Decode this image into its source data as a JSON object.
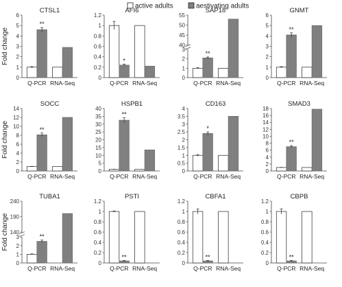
{
  "legend": {
    "active": "active adults",
    "aestivating": "aestivating adults"
  },
  "colors": {
    "active": "#ffffff",
    "aestivating": "#808080",
    "stroke": "#222222"
  },
  "ylabel": "Fold change",
  "groups": [
    "Q-PCR",
    "RNA-Seq"
  ],
  "chart_data": [
    {
      "type": "bar",
      "title": "CTSL1",
      "categories": [
        "Q-PCR",
        "RNA-Seq"
      ],
      "series": [
        {
          "name": "active adults",
          "values": [
            1,
            1
          ],
          "err": [
            0.05,
            0
          ]
        },
        {
          "name": "aestivating adults",
          "values": [
            4.6,
            2.9
          ],
          "err": [
            0.2,
            0
          ]
        }
      ],
      "ylim": [
        0,
        6
      ],
      "yticks": [
        "0",
        "1",
        "2",
        "3",
        "4",
        "5",
        "6"
      ],
      "sig": [
        "**",
        ""
      ],
      "sig_over": [
        1,
        1
      ]
    },
    {
      "type": "bar",
      "title": "AFI6",
      "categories": [
        "Q-PCR",
        "RNA-Seq"
      ],
      "series": [
        {
          "name": "active adults",
          "values": [
            1,
            1
          ],
          "err": [
            0.08,
            0
          ]
        },
        {
          "name": "aestivating adults",
          "values": [
            0.24,
            0.22
          ],
          "err": [
            0.02,
            0
          ]
        }
      ],
      "ylim": [
        0,
        1.2
      ],
      "yticks": [
        "0",
        "0.2",
        "0.4",
        "0.6",
        "0.8",
        "1",
        "1.2"
      ],
      "sig": [
        "*",
        ""
      ],
      "sig_over": [
        1,
        1
      ]
    },
    {
      "type": "bar",
      "title": "SAP18",
      "categories": [
        "Q-PCR",
        "RNA-Seq"
      ],
      "series": [
        {
          "name": "active adults",
          "values": [
            1,
            1
          ],
          "err": [
            0.05,
            0
          ]
        },
        {
          "name": "aestivating adults",
          "values": [
            2.1,
            53
          ],
          "err": [
            0.1,
            0
          ]
        }
      ],
      "ylim": [
        0,
        55
      ],
      "yticks": [
        "0",
        "1",
        "2",
        "3",
        "40",
        "45",
        "50",
        "55"
      ],
      "broken_axis": true,
      "sig": [
        "**",
        ""
      ],
      "sig_over": [
        1,
        1
      ]
    },
    {
      "type": "bar",
      "title": "GNMT",
      "categories": [
        "Q-PCR",
        "RNA-Seq"
      ],
      "series": [
        {
          "name": "active adults",
          "values": [
            1,
            1
          ],
          "err": [
            0.05,
            0
          ]
        },
        {
          "name": "aestivating adults",
          "values": [
            4.1,
            5.0
          ],
          "err": [
            0.2,
            0
          ]
        }
      ],
      "ylim": [
        0,
        6
      ],
      "yticks": [
        "0",
        "1",
        "2",
        "3",
        "4",
        "5",
        "6"
      ],
      "sig": [
        "**",
        ""
      ],
      "sig_over": [
        1,
        1
      ]
    },
    {
      "type": "bar",
      "title": "SOCC",
      "categories": [
        "Q-PCR",
        "RNA-Seq"
      ],
      "series": [
        {
          "name": "active adults",
          "values": [
            1,
            1
          ],
          "err": [
            0.05,
            0
          ]
        },
        {
          "name": "aestivating adults",
          "values": [
            8.1,
            12
          ],
          "err": [
            0.4,
            0
          ]
        }
      ],
      "ylim": [
        0,
        14
      ],
      "yticks": [
        "0",
        "2",
        "4",
        "6",
        "8",
        "10",
        "12",
        "14"
      ],
      "sig": [
        "**",
        ""
      ],
      "sig_over": [
        1,
        1
      ]
    },
    {
      "type": "bar",
      "title": "HSPB1",
      "categories": [
        "Q-PCR",
        "RNA-Seq"
      ],
      "series": [
        {
          "name": "active adults",
          "values": [
            1,
            1
          ],
          "err": [
            0.1,
            0
          ]
        },
        {
          "name": "aestivating adults",
          "values": [
            32.5,
            13.5
          ],
          "err": [
            1.5,
            0
          ]
        }
      ],
      "ylim": [
        0,
        40
      ],
      "yticks": [
        "0",
        "5",
        "10",
        "15",
        "20",
        "25",
        "30",
        "35",
        "40"
      ],
      "sig": [
        "**",
        ""
      ],
      "sig_over": [
        1,
        1
      ]
    },
    {
      "type": "bar",
      "title": "CD163",
      "categories": [
        "Q-PCR",
        "RNA-Seq"
      ],
      "series": [
        {
          "name": "active adults",
          "values": [
            1,
            1
          ],
          "err": [
            0.05,
            0
          ]
        },
        {
          "name": "aestivating adults",
          "values": [
            2.4,
            3.5
          ],
          "err": [
            0.1,
            0
          ]
        }
      ],
      "ylim": [
        0,
        4
      ],
      "yticks": [
        "0",
        "0.5",
        "1",
        "1.5",
        "2",
        "2.5",
        "3",
        "3.5",
        "4"
      ],
      "sig": [
        "*",
        ""
      ],
      "sig_over": [
        1,
        1
      ]
    },
    {
      "type": "bar",
      "title": "SMAD3",
      "categories": [
        "Q-PCR",
        "RNA-Seq"
      ],
      "series": [
        {
          "name": "active adults",
          "values": [
            1,
            1
          ],
          "err": [
            0.05,
            0
          ]
        },
        {
          "name": "aestivating adults",
          "values": [
            7.0,
            17.8
          ],
          "err": [
            0.3,
            0
          ]
        }
      ],
      "ylim": [
        0,
        18
      ],
      "yticks": [
        "0",
        "2",
        "4",
        "6",
        "8",
        "10",
        "12",
        "14",
        "16",
        "18"
      ],
      "sig": [
        "**",
        ""
      ],
      "sig_over": [
        1,
        1
      ]
    },
    {
      "type": "bar",
      "title": "TUBA1",
      "categories": [
        "Q-PCR",
        "RNA-Seq"
      ],
      "series": [
        {
          "name": "active adults",
          "values": [
            1,
            null
          ],
          "err": [
            0.05,
            0
          ]
        },
        {
          "name": "aestivating adults",
          "values": [
            110,
            200
          ],
          "err": [
            4,
            0
          ]
        }
      ],
      "ylim": [
        0,
        240
      ],
      "yticks": [
        "0",
        "1",
        "2",
        "3",
        "140",
        "190",
        "240"
      ],
      "broken_axis": true,
      "sig": [
        "**",
        ""
      ],
      "sig_over": [
        1,
        1
      ]
    },
    {
      "type": "bar",
      "title": "PSTI",
      "categories": [
        "Q-PCR",
        "RNA-Seq"
      ],
      "series": [
        {
          "name": "active adults",
          "values": [
            1,
            1
          ],
          "err": [
            0.01,
            0
          ]
        },
        {
          "name": "aestivating adults",
          "values": [
            0.04,
            null
          ],
          "err": [
            0.01,
            0
          ]
        }
      ],
      "ylim": [
        0,
        1.2
      ],
      "yticks": [
        "0",
        "0.2",
        "0.4",
        "0.6",
        "0.8",
        "1",
        "1.2"
      ],
      "sig": [
        "**",
        ""
      ],
      "sig_over": [
        1,
        1
      ]
    },
    {
      "type": "bar",
      "title": "CBFA1",
      "categories": [
        "Q-PCR",
        "RNA-Seq"
      ],
      "series": [
        {
          "name": "active adults",
          "values": [
            1,
            1
          ],
          "err": [
            0.05,
            0
          ]
        },
        {
          "name": "aestivating adults",
          "values": [
            0.04,
            null
          ],
          "err": [
            0.01,
            0
          ]
        }
      ],
      "ylim": [
        0,
        1.2
      ],
      "yticks": [
        "0",
        "0.2",
        "0.4",
        "0.6",
        "0.8",
        "1",
        "1.2"
      ],
      "sig": [
        "**",
        ""
      ],
      "sig_over": [
        1,
        1
      ]
    },
    {
      "type": "bar",
      "title": "CBPB",
      "categories": [
        "Q-PCR",
        "RNA-Seq"
      ],
      "series": [
        {
          "name": "active adults",
          "values": [
            1,
            1
          ],
          "err": [
            0.05,
            0
          ]
        },
        {
          "name": "aestivating adults",
          "values": [
            0.04,
            null
          ],
          "err": [
            0.01,
            0
          ]
        }
      ],
      "ylim": [
        0,
        1.2
      ],
      "yticks": [
        "0",
        "0.2",
        "0.4",
        "0.6",
        "0.8",
        "1",
        "1.2"
      ],
      "sig": [
        "**",
        ""
      ],
      "sig_over": [
        1,
        1
      ]
    }
  ]
}
